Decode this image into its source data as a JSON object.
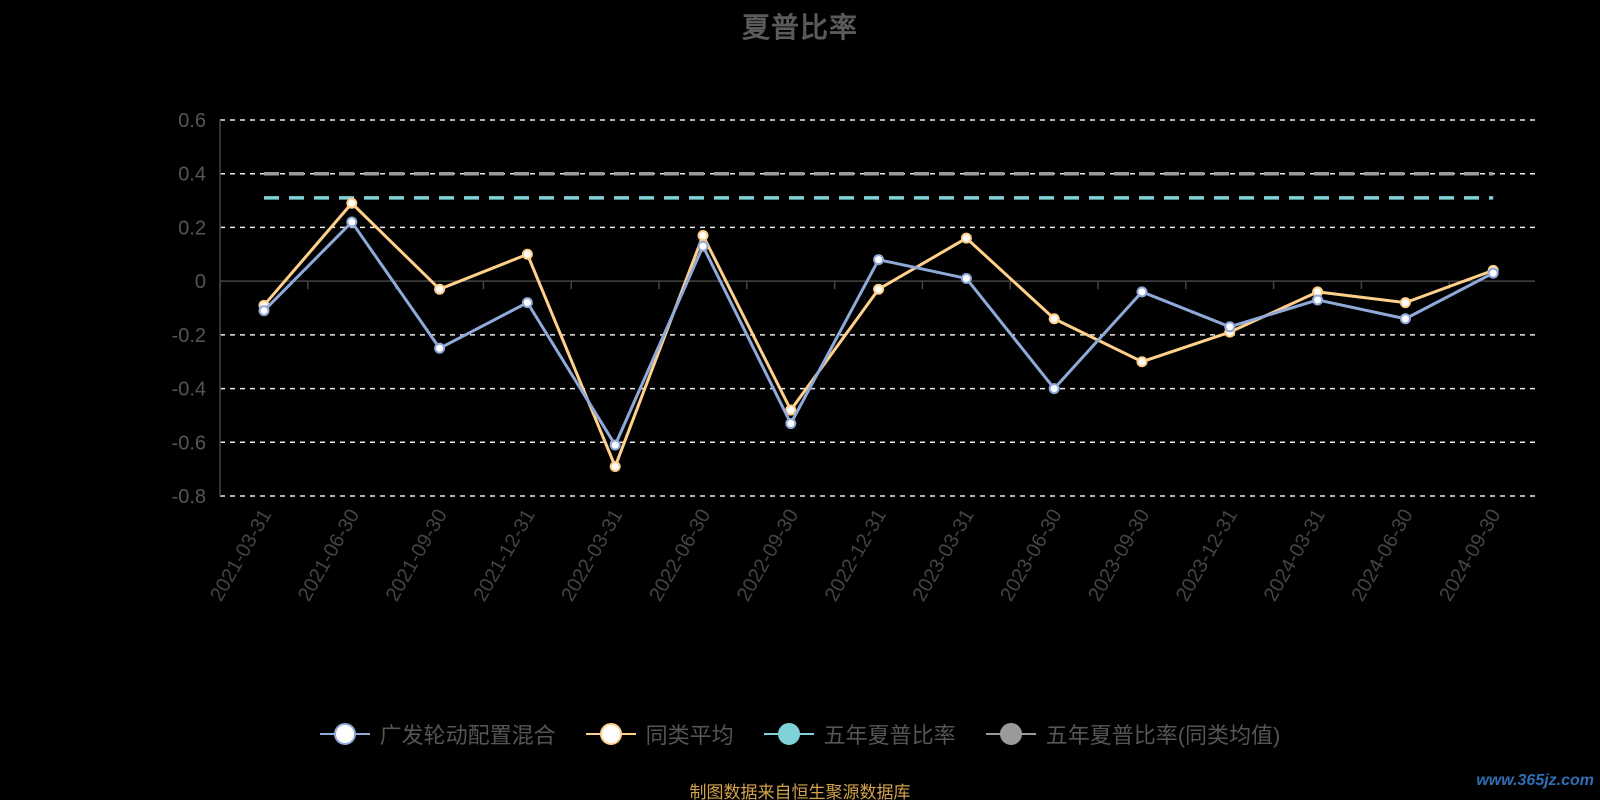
{
  "chart_title": "夏普比率",
  "legend": {
    "items": [
      {
        "label": "广发轮动配置混合",
        "color": "#8fa9d8",
        "dot_fill": "#ffffff"
      },
      {
        "label": "同类平均",
        "color": "#ffd08a",
        "dot_fill": "#ffffff"
      },
      {
        "label": "五年夏普比率",
        "color": "#7fd3d8",
        "dot_fill": "#7fd3d8"
      },
      {
        "label": "五年夏普比率(同类均值)",
        "color": "#9a9a9a",
        "dot_fill": "#9a9a9a"
      }
    ]
  },
  "source_note": "制图数据来自恒生聚源数据库",
  "watermark": "www.365jz.com",
  "chart_data": {
    "type": "line",
    "title": "夏普比率",
    "xlabel": "",
    "ylabel": "",
    "ylim": [
      -0.8,
      0.6
    ],
    "yticks": [
      0.6,
      0.4,
      0.2,
      0,
      -0.2,
      -0.4,
      -0.6,
      -0.8
    ],
    "ytick_labels": [
      "0.6",
      "0.4",
      "0.2",
      "0",
      "-0.2",
      "-0.4",
      "-0.6",
      "-0.8"
    ],
    "grid": true,
    "legend_position": "bottom",
    "categories": [
      "2021-03-31",
      "2021-06-30",
      "2021-09-30",
      "2021-12-31",
      "2022-03-31",
      "2022-06-30",
      "2022-09-30",
      "2022-12-31",
      "2023-03-31",
      "2023-06-30",
      "2023-09-30",
      "2023-12-31",
      "2024-03-31",
      "2024-06-30",
      "2024-09-30"
    ],
    "series": [
      {
        "name": "广发轮动配置混合",
        "color": "#8fa9d8",
        "values": [
          -0.11,
          0.22,
          -0.25,
          -0.08,
          -0.61,
          0.13,
          -0.53,
          0.08,
          0.01,
          -0.4,
          -0.04,
          -0.17,
          -0.07,
          -0.14,
          0.03
        ]
      },
      {
        "name": "同类平均",
        "color": "#ffd08a",
        "values": [
          -0.09,
          0.29,
          -0.03,
          0.1,
          -0.69,
          0.17,
          -0.48,
          -0.03,
          0.16,
          -0.14,
          -0.3,
          -0.19,
          -0.04,
          -0.08,
          0.04
        ]
      }
    ],
    "reference_lines": [
      {
        "name": "五年夏普比率",
        "color": "#7fd3d8",
        "value": 0.31
      },
      {
        "name": "五年夏普比率(同类均值)",
        "color": "#9a9a9a",
        "value": 0.4
      }
    ]
  }
}
